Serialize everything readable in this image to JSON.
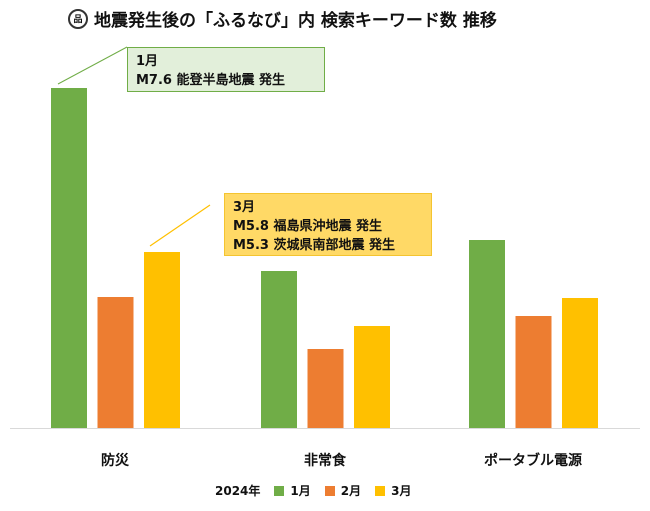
{
  "chart_data": {
    "type": "bar",
    "title": "地震発生後の「ふるなび」内 検索キーワード数 推移",
    "categories": [
      "防災",
      "非常食",
      "ポータブル電源"
    ],
    "legend_title": "2024年",
    "legend_position": "bottom",
    "series": [
      {
        "name": "1月",
        "color": "#70ad47",
        "values": [
          340,
          157,
          188
        ]
      },
      {
        "name": "2月",
        "color": "#ed7d31",
        "values": [
          131,
          79,
          112
        ]
      },
      {
        "name": "3月",
        "color": "#ffc000",
        "values": [
          176,
          102,
          130
        ]
      }
    ],
    "ylim": [
      0,
      360
    ],
    "grid": false,
    "annotations": [
      {
        "lines": [
          "1月",
          "M7.6 能登半島地震 発生"
        ]
      },
      {
        "lines": [
          "3月",
          "M5.8 福島県沖地震 発生",
          "M5.3 茨城県南部地震 発生"
        ]
      }
    ]
  }
}
